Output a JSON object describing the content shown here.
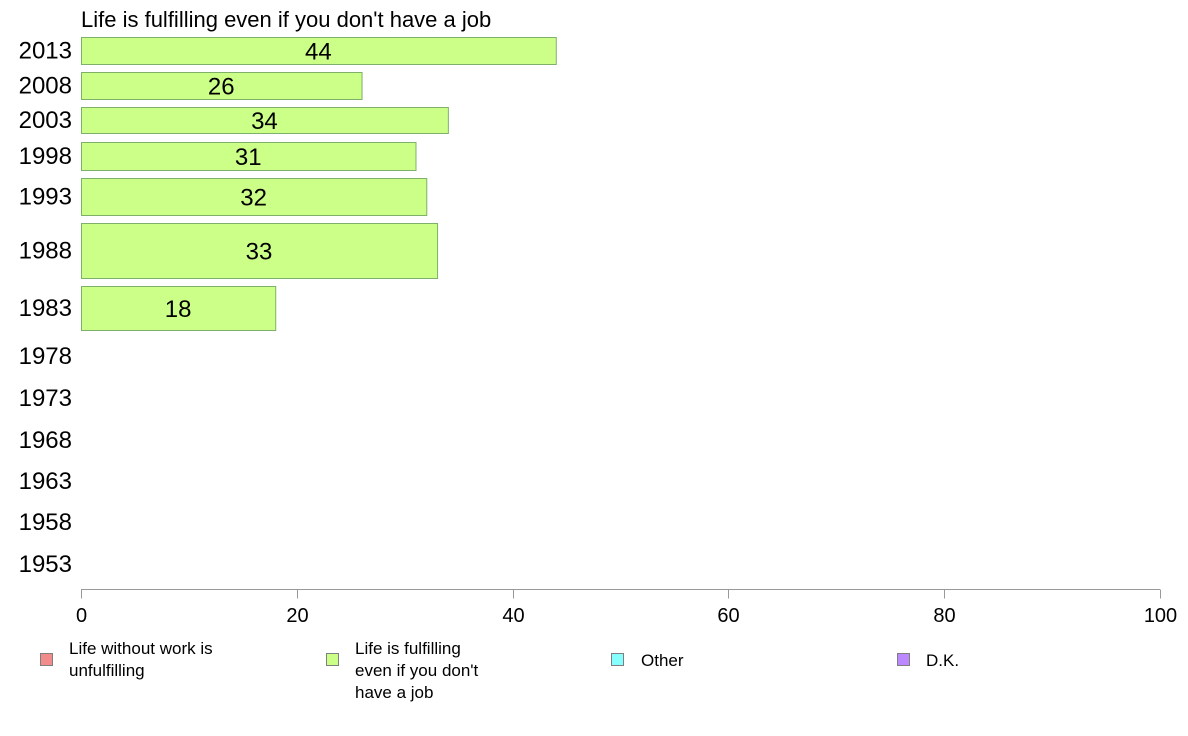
{
  "chart_data": {
    "type": "bar",
    "orientation": "horizontal",
    "title": "Life is fulfilling even if you don't have a job",
    "categories": [
      "2013",
      "2008",
      "2003",
      "1998",
      "1993",
      "1988",
      "1983",
      "1978",
      "1973",
      "1968",
      "1963",
      "1958",
      "1953"
    ],
    "series": [
      {
        "name": "Life is fulfilling even if you don't have a job",
        "values": [
          44,
          26,
          34,
          31,
          32,
          33,
          18,
          null,
          null,
          null,
          null,
          null,
          null
        ],
        "color": "#ccff88"
      }
    ],
    "xlim": [
      0,
      100
    ],
    "xticks": [
      "0",
      "20",
      "40",
      "60",
      "80",
      "100"
    ],
    "xlabel": "",
    "ylabel": "",
    "grid": false,
    "legend": {
      "position": "bottom",
      "items": [
        {
          "label": "Life without work is unfulfilling",
          "color": "#f28b8b"
        },
        {
          "label": "Life is fulfilling even if you don't have a job",
          "color": "#ccff88"
        },
        {
          "label": "Other",
          "color": "#88ffff"
        },
        {
          "label": "D.K.",
          "color": "#bb88ff"
        }
      ]
    }
  }
}
